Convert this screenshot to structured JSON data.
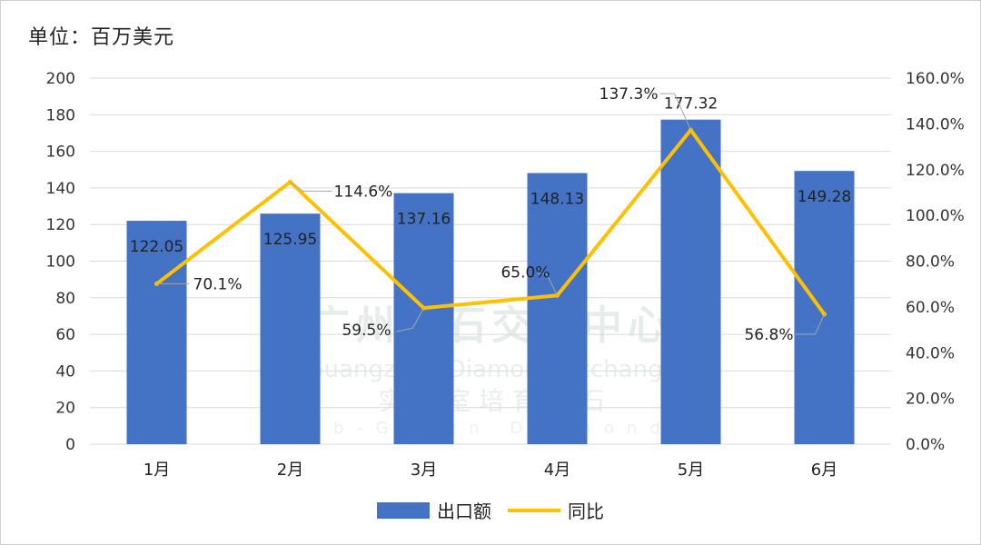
{
  "unit_label": "单位：百万美元",
  "watermark": {
    "cn": "广州钻石交易中心",
    "en": "Guangzhou Diamond Exchange",
    "cn2": "实 验 室 培 育 钻 石",
    "en2": "Lab-Grown Diamonds"
  },
  "legend": {
    "bar": "出口额",
    "line": "同比"
  },
  "colors": {
    "bar": "#4472c4",
    "line": "#ffc000",
    "grid": "#d9d9d9"
  },
  "chart_data": {
    "type": "bar",
    "categories": [
      "1月",
      "2月",
      "3月",
      "4月",
      "5月",
      "6月"
    ],
    "series": [
      {
        "name": "出口额",
        "type": "bar",
        "axis": "left",
        "values": [
          122.05,
          125.95,
          137.16,
          148.13,
          177.32,
          149.28
        ],
        "labels": [
          "122.05",
          "125.95",
          "137.16",
          "148.13",
          "177.32",
          "149.28"
        ]
      },
      {
        "name": "同比",
        "type": "line",
        "axis": "right",
        "values": [
          70.1,
          114.6,
          59.5,
          65.0,
          137.3,
          56.8
        ],
        "labels": [
          "70.1%",
          "114.6%",
          "59.5%",
          "65.0%",
          "137.3%",
          "56.8%"
        ]
      }
    ],
    "left_axis": {
      "ylim": [
        0,
        200
      ],
      "ticks": [
        "0",
        "20",
        "40",
        "60",
        "80",
        "100",
        "120",
        "140",
        "160",
        "180",
        "200"
      ]
    },
    "right_axis": {
      "ylim": [
        0,
        160
      ],
      "ticks": [
        "0.0%",
        "20.0%",
        "40.0%",
        "60.0%",
        "80.0%",
        "100.0%",
        "120.0%",
        "140.0%",
        "160.0%"
      ]
    },
    "grid": true,
    "legend_position": "bottom"
  }
}
